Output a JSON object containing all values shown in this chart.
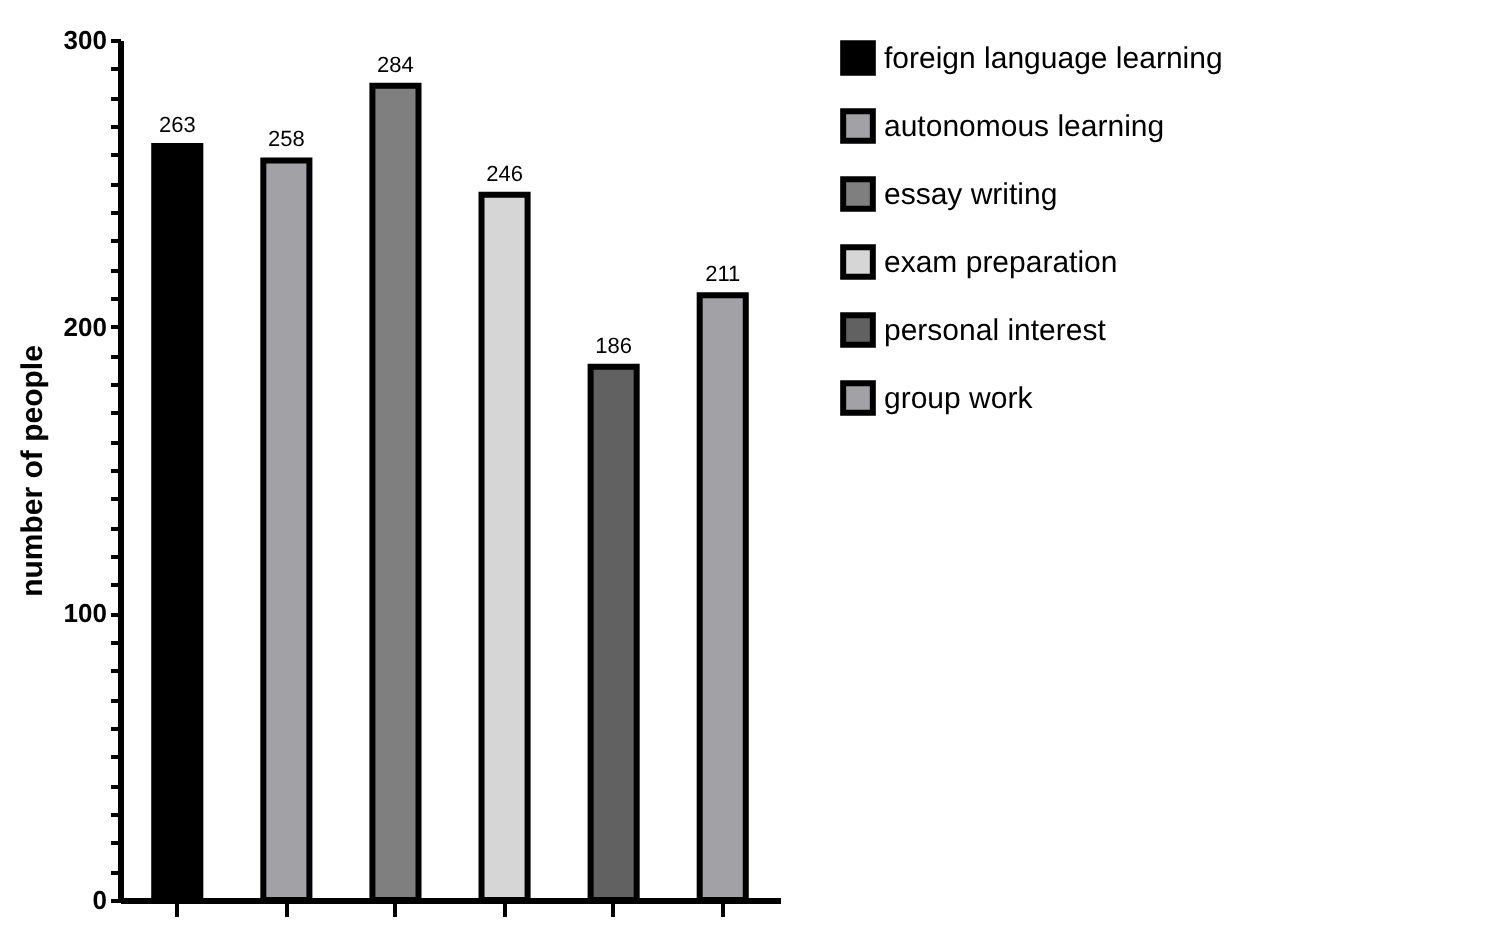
{
  "chart_data": {
    "type": "bar",
    "ylabel": "number of people",
    "categories": [
      null,
      null,
      null,
      null,
      null,
      null
    ],
    "series": [
      {
        "name": "foreign language learning",
        "color": "#000000",
        "values": [
          263,
          null,
          null,
          null,
          null,
          null
        ]
      },
      {
        "name": "autonomous learning",
        "color": "#a2a1a6",
        "values": [
          null,
          258,
          null,
          null,
          null,
          null
        ]
      },
      {
        "name": "essay writing",
        "color": "#7f7f7f",
        "values": [
          null,
          null,
          284,
          null,
          null,
          null
        ]
      },
      {
        "name": "exam preparation",
        "color": "#d6d6d6",
        "values": [
          null,
          null,
          null,
          246,
          null,
          null
        ]
      },
      {
        "name": "personal interest",
        "color": "#616161",
        "values": [
          null,
          null,
          null,
          null,
          186,
          null
        ]
      },
      {
        "name": "group work",
        "color": "#a2a1a6",
        "values": [
          null,
          null,
          null,
          null,
          null,
          211
        ]
      }
    ],
    "ylim": [
      0,
      300
    ],
    "yticks": [
      0,
      {
        "value": 10,
        "label": null
      },
      {
        "value": 20,
        "label": null
      },
      {
        "value": 30,
        "label": null
      },
      {
        "value": 40,
        "label": null
      },
      {
        "value": 50,
        "label": null
      },
      {
        "value": 60,
        "label": null
      },
      {
        "value": 70,
        "label": null
      },
      {
        "value": 80,
        "label": null
      },
      {
        "value": 90,
        "label": null
      },
      100,
      {
        "value": 110,
        "label": null
      },
      {
        "value": 120,
        "label": null
      },
      {
        "value": 130,
        "label": null
      },
      {
        "value": 140,
        "label": null
      },
      {
        "value": 150,
        "label": null
      },
      {
        "value": 160,
        "label": null
      },
      {
        "value": 170,
        "label": null
      },
      {
        "value": 180,
        "label": null
      },
      {
        "value": 190,
        "label": null
      },
      200,
      {
        "value": 210,
        "label": null
      },
      {
        "value": 220,
        "label": null
      },
      {
        "value": 230,
        "label": null
      },
      {
        "value": 240,
        "label": null
      },
      {
        "value": 250,
        "label": null
      },
      {
        "value": 260,
        "label": null
      },
      {
        "value": 270,
        "label": null
      },
      {
        "value": 280,
        "label": null
      },
      {
        "value": 290,
        "label": null
      },
      300
    ],
    "data_labels": true,
    "legend": "top right",
    "grid": false,
    "tick_labels": "y"
  }
}
